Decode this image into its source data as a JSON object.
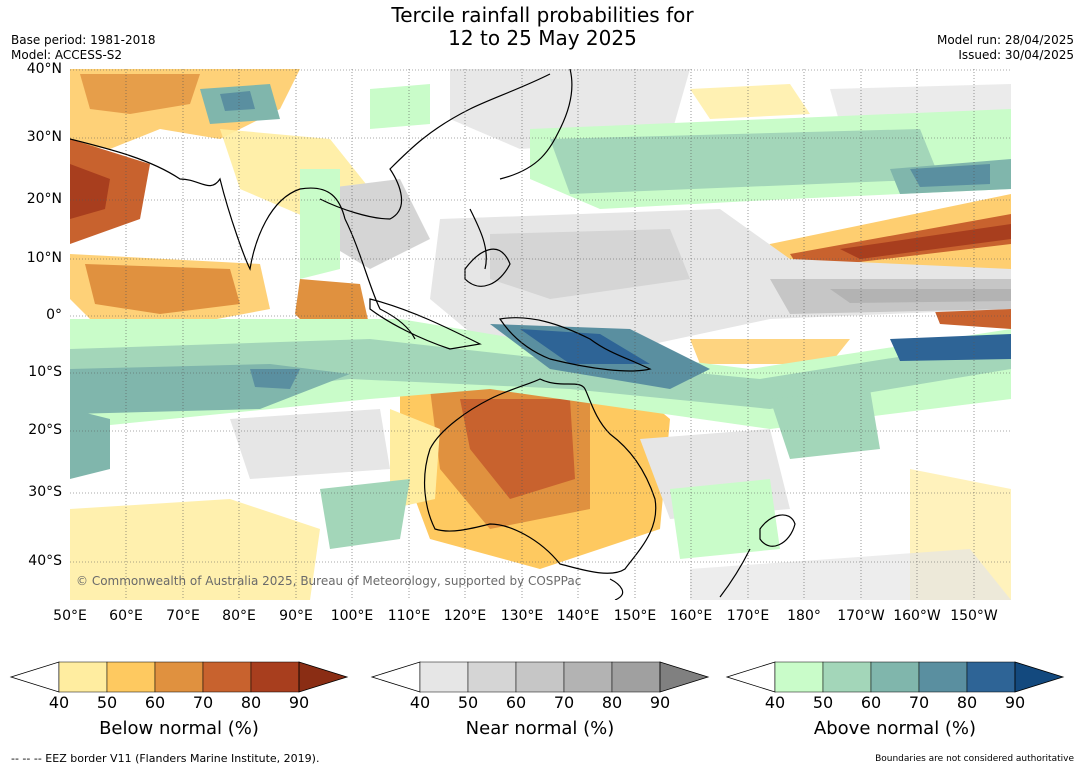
{
  "title_line1": "Tercile rainfall probabilities for",
  "title_line2": "12 to 25 May 2025",
  "base_period": "Base period: 1981-2018",
  "model": "Model: ACCESS-S2",
  "model_run": "Model run: 28/04/2025",
  "issued": "Issued: 30/04/2025",
  "credit": "© Commonwealth of Australia 2025, Bureau of Meteorology, supported by COSPPac",
  "lat_labels": [
    "40°N",
    "30°N",
    "20°N",
    "10°N",
    "0°",
    "10°S",
    "20°S",
    "30°S",
    "40°S"
  ],
  "lon_labels": [
    "50°E",
    "60°E",
    "70°E",
    "80°E",
    "90°E",
    "100°E",
    "110°E",
    "120°E",
    "130°E",
    "140°E",
    "150°E",
    "160°E",
    "170°E",
    "180°",
    "170°W",
    "160°W",
    "150°W"
  ],
  "colorbars": [
    {
      "title": "Below normal (%)",
      "ticks": [
        "40",
        "50",
        "60",
        "70",
        "80",
        "90"
      ],
      "colors": [
        "#ffffff",
        "#ffeda0",
        "#fec960",
        "#e0913f",
        "#c8622e",
        "#a83e1e",
        "#8a2d14"
      ]
    },
    {
      "title": "Near normal (%)",
      "ticks": [
        "40",
        "50",
        "60",
        "70",
        "80",
        "90"
      ],
      "colors": [
        "#ffffff",
        "#e6e6e6",
        "#d5d5d5",
        "#c6c6c6",
        "#b3b3b3",
        "#a0a0a0",
        "#808080"
      ]
    },
    {
      "title": "Above normal (%)",
      "ticks": [
        "40",
        "50",
        "60",
        "70",
        "80",
        "90"
      ],
      "colors": [
        "#ffffff",
        "#c9fcc9",
        "#a3d6b9",
        "#80b6ac",
        "#5a8fa0",
        "#2e6496",
        "#13497e"
      ]
    }
  ],
  "footer_left": "--  --  -- EEZ border V11 (Flanders Marine Institute, 2019).",
  "footer_right": "Boundaries are not considered authoritative"
}
